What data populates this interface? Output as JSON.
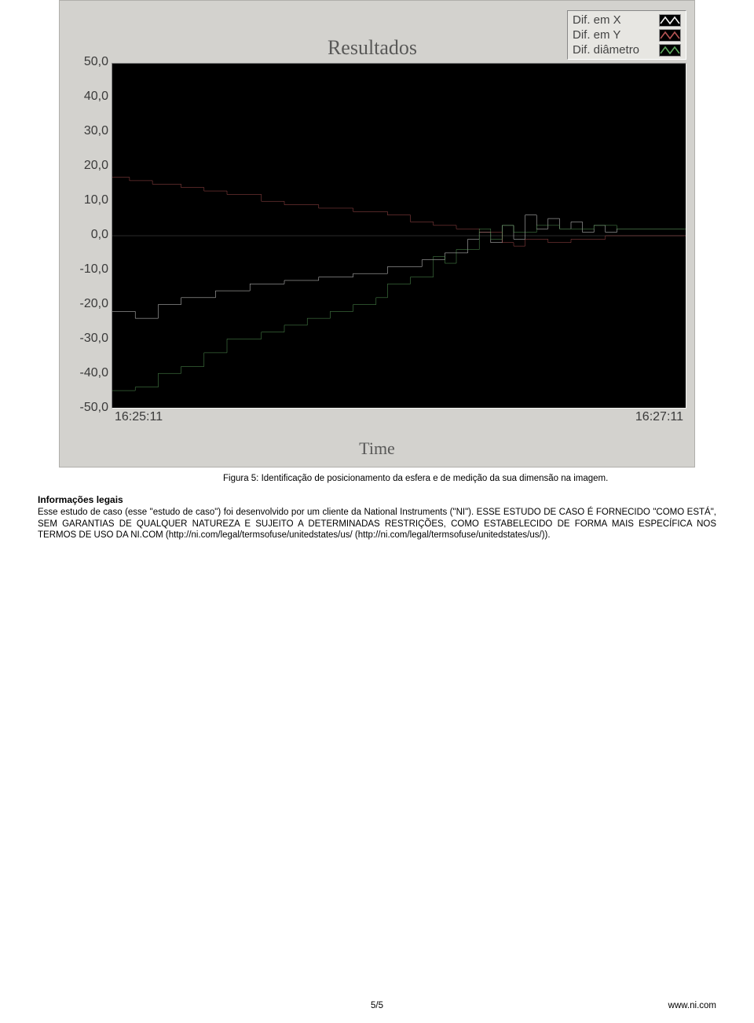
{
  "chart": {
    "type": "line",
    "title": "Resultados",
    "x_title": "Time",
    "background_color": "#d3d2ce",
    "plot_bg": "#000000",
    "y_axis": {
      "min": -50,
      "max": 50,
      "step": 10,
      "ticks": [
        "50,0",
        "40,0",
        "30,0",
        "20,0",
        "10,0",
        "0,0",
        "-10,0",
        "-20,0",
        "-30,0",
        "-40,0",
        "-50,0"
      ],
      "tick_fontsize": 16,
      "tick_color": "#3a3a3a"
    },
    "x_axis": {
      "tick_left": "16:25:11",
      "tick_right": "16:27:11",
      "tick_fontsize": 16,
      "tick_color": "#3a3a3a"
    },
    "legend": {
      "items": [
        {
          "label": "Dif. em X",
          "color": "#f2f2f0"
        },
        {
          "label": "Dif. em Y",
          "color": "#b55454"
        },
        {
          "label": "Dif. diâmetro",
          "color": "#5da85d"
        }
      ],
      "bg": "#e7e6e2",
      "swatch_bg": "#000000",
      "fontsize": 15
    },
    "series": [
      {
        "name": "Dif. em X",
        "color": "#f2f2f0",
        "line_width": 1.5,
        "data": [
          [
            0,
            -22
          ],
          [
            4,
            -22
          ],
          [
            4,
            -24
          ],
          [
            8,
            -24
          ],
          [
            8,
            -20
          ],
          [
            12,
            -20
          ],
          [
            12,
            -18
          ],
          [
            18,
            -18
          ],
          [
            18,
            -16
          ],
          [
            24,
            -16
          ],
          [
            24,
            -14
          ],
          [
            30,
            -14
          ],
          [
            30,
            -13
          ],
          [
            36,
            -13
          ],
          [
            36,
            -12
          ],
          [
            42,
            -12
          ],
          [
            42,
            -11
          ],
          [
            48,
            -11
          ],
          [
            48,
            -9
          ],
          [
            54,
            -9
          ],
          [
            54,
            -7
          ],
          [
            58,
            -7
          ],
          [
            58,
            -5
          ],
          [
            62,
            -5
          ],
          [
            62,
            -1
          ],
          [
            64,
            -1
          ],
          [
            64,
            1
          ],
          [
            66,
            1
          ],
          [
            66,
            -2
          ],
          [
            68,
            -2
          ],
          [
            68,
            3
          ],
          [
            70,
            3
          ],
          [
            70,
            -1
          ],
          [
            72,
            -1
          ],
          [
            72,
            6
          ],
          [
            74,
            6
          ],
          [
            74,
            2
          ],
          [
            76,
            2
          ],
          [
            76,
            5
          ],
          [
            78,
            5
          ],
          [
            78,
            2
          ],
          [
            80,
            2
          ],
          [
            80,
            4
          ],
          [
            82,
            4
          ],
          [
            82,
            1
          ],
          [
            84,
            1
          ],
          [
            84,
            3
          ],
          [
            86,
            3
          ],
          [
            86,
            1
          ],
          [
            88,
            1
          ],
          [
            88,
            2
          ],
          [
            100,
            2
          ]
        ]
      },
      {
        "name": "Dif. em Y",
        "color": "#b55454",
        "line_width": 1.5,
        "data": [
          [
            0,
            17
          ],
          [
            3,
            17
          ],
          [
            3,
            16
          ],
          [
            7,
            16
          ],
          [
            7,
            15
          ],
          [
            12,
            15
          ],
          [
            12,
            14
          ],
          [
            16,
            14
          ],
          [
            16,
            13
          ],
          [
            20,
            13
          ],
          [
            20,
            12
          ],
          [
            26,
            12
          ],
          [
            26,
            10
          ],
          [
            30,
            10
          ],
          [
            30,
            9
          ],
          [
            36,
            9
          ],
          [
            36,
            8
          ],
          [
            42,
            8
          ],
          [
            42,
            7
          ],
          [
            48,
            7
          ],
          [
            48,
            6
          ],
          [
            52,
            6
          ],
          [
            52,
            4
          ],
          [
            56,
            4
          ],
          [
            56,
            3
          ],
          [
            60,
            3
          ],
          [
            60,
            2
          ],
          [
            64,
            2
          ],
          [
            64,
            1
          ],
          [
            68,
            1
          ],
          [
            68,
            -2
          ],
          [
            70,
            -2
          ],
          [
            70,
            -3
          ],
          [
            72,
            -3
          ],
          [
            72,
            -1
          ],
          [
            76,
            -1
          ],
          [
            76,
            -2
          ],
          [
            80,
            -2
          ],
          [
            80,
            -1
          ],
          [
            86,
            -1
          ],
          [
            86,
            0
          ],
          [
            100,
            0
          ]
        ]
      },
      {
        "name": "Dif. diâmetro",
        "color": "#5da85d",
        "line_width": 1.5,
        "data": [
          [
            0,
            -45
          ],
          [
            4,
            -45
          ],
          [
            4,
            -44
          ],
          [
            8,
            -44
          ],
          [
            8,
            -40
          ],
          [
            12,
            -40
          ],
          [
            12,
            -38
          ],
          [
            16,
            -38
          ],
          [
            16,
            -34
          ],
          [
            20,
            -34
          ],
          [
            20,
            -30
          ],
          [
            26,
            -30
          ],
          [
            26,
            -28
          ],
          [
            30,
            -28
          ],
          [
            30,
            -26
          ],
          [
            34,
            -26
          ],
          [
            34,
            -24
          ],
          [
            38,
            -24
          ],
          [
            38,
            -22
          ],
          [
            42,
            -22
          ],
          [
            42,
            -20
          ],
          [
            46,
            -20
          ],
          [
            46,
            -18
          ],
          [
            48,
            -18
          ],
          [
            48,
            -14
          ],
          [
            52,
            -14
          ],
          [
            52,
            -12
          ],
          [
            56,
            -12
          ],
          [
            56,
            -6
          ],
          [
            58,
            -6
          ],
          [
            58,
            -8
          ],
          [
            60,
            -8
          ],
          [
            60,
            -4
          ],
          [
            64,
            -4
          ],
          [
            64,
            2
          ],
          [
            66,
            2
          ],
          [
            66,
            -1
          ],
          [
            68,
            -1
          ],
          [
            68,
            3
          ],
          [
            70,
            3
          ],
          [
            70,
            1
          ],
          [
            74,
            1
          ],
          [
            74,
            3
          ],
          [
            78,
            3
          ],
          [
            78,
            2
          ],
          [
            84,
            2
          ],
          [
            84,
            3
          ],
          [
            88,
            3
          ],
          [
            88,
            2
          ],
          [
            100,
            2
          ]
        ]
      }
    ]
  },
  "caption": "Figura 5: Identificação de posicionamento da esfera e de medição da sua dimensão na imagem.",
  "legal": {
    "title": "Informações legais",
    "body": "Esse estudo de caso (esse \"estudo de caso\") foi desenvolvido por um cliente da National Instruments (\"NI\"). ESSE ESTUDO DE CASO É FORNECIDO \"COMO ESTÁ\", SEM GARANTIAS DE QUALQUER NATUREZA E SUJEITO A DETERMINADAS RESTRIÇÕES, COMO ESTABELECIDO DE FORMA MAIS ESPECÍFICA NOS TERMOS DE USO DA NI.COM (http://ni.com/legal/termsofuse/unitedstates/us/ (http://ni.com/legal/termsofuse/unitedstates/us/))."
  },
  "footer": {
    "page": "5/5",
    "site": "www.ni.com"
  }
}
